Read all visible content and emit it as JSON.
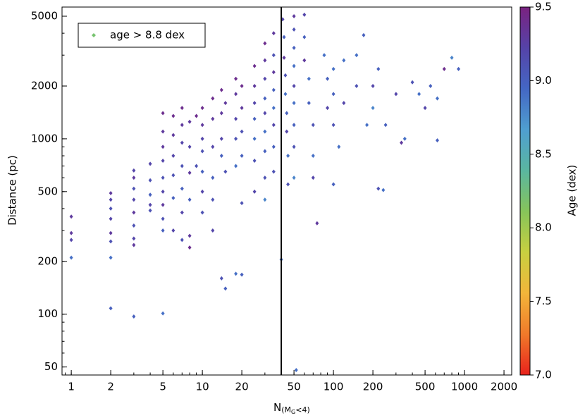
{
  "chart_data": {
    "type": "scatter",
    "xlabel": [
      "N",
      "(M",
      "G",
      "<4)"
    ],
    "ylabel": "Distance (pc)",
    "colorbar_label": "Age (dex)",
    "xscale": "log",
    "yscale": "log",
    "xlim": [
      0.85,
      2290
    ],
    "ylim": [
      45,
      5640
    ],
    "xticks": [
      1,
      2,
      5,
      10,
      20,
      50,
      100,
      200,
      500,
      1000,
      2000
    ],
    "yticks": [
      50,
      100,
      200,
      500,
      1000,
      2000,
      5000
    ],
    "clim": [
      7.0,
      9.5
    ],
    "cticks": [
      {
        "value": 7.0,
        "label": "7.0"
      },
      7.5,
      {
        "value": 8.0,
        "label": "8.0"
      },
      8.5,
      {
        "value": 9.0,
        "label": "9.0"
      },
      9.5
    ],
    "colormap": [
      "#e8221c",
      "#f07a2a",
      "#f2b53a",
      "#c8d040",
      "#86c45a",
      "#5ab6a0",
      "#4f9fd0",
      "#4467c4",
      "#5543a8",
      "#7a2280"
    ],
    "vline": 40,
    "legend": {
      "label": "age > 8.8 dex",
      "color": "#77c36f",
      "loc": "upper left"
    },
    "series": [
      {
        "name": "age > 8.8 dex",
        "x": [
          1,
          1,
          1,
          1,
          2,
          2,
          2,
          2,
          2,
          2,
          2,
          2,
          3,
          3,
          3,
          3,
          3,
          3,
          3,
          3,
          3,
          4,
          4,
          4,
          4,
          4,
          5,
          5,
          5,
          5,
          5,
          5,
          5,
          5,
          5,
          5,
          6,
          6,
          6,
          6,
          6,
          6,
          7,
          7,
          7,
          7,
          7,
          7,
          7,
          8,
          8,
          8,
          8,
          8,
          8,
          9,
          9,
          10,
          10,
          10,
          10,
          10,
          10,
          10,
          12,
          12,
          12,
          12,
          12,
          12,
          14,
          14,
          14,
          14,
          14,
          15,
          15,
          15,
          18,
          18,
          18,
          18,
          18,
          18,
          20,
          20,
          20,
          20,
          20,
          20,
          25,
          25,
          25,
          25,
          25,
          25,
          25,
          30,
          30,
          30,
          30,
          30,
          30,
          30,
          30,
          30,
          35,
          35,
          35,
          35,
          35,
          35,
          35,
          35,
          41,
          42,
          42,
          43,
          43,
          44,
          44,
          45,
          45,
          40,
          50,
          50,
          50,
          50,
          50,
          50,
          50,
          50,
          50,
          52,
          60,
          60,
          60,
          65,
          65,
          70,
          70,
          70,
          75,
          85,
          90,
          90,
          100,
          100,
          100,
          110,
          120,
          120,
          100,
          150,
          150,
          170,
          180,
          200,
          200,
          220,
          220,
          240,
          250,
          300,
          330,
          350,
          400,
          450,
          500,
          550,
          620,
          620,
          700,
          800,
          900
        ],
        "values": [
          360,
          290,
          265,
          210,
          490,
          450,
          400,
          350,
          290,
          260,
          210,
          108,
          660,
          600,
          520,
          450,
          380,
          320,
          270,
          248,
          97,
          720,
          580,
          480,
          420,
          390,
          1400,
          1100,
          900,
          750,
          600,
          500,
          420,
          350,
          300,
          101,
          1350,
          1050,
          800,
          620,
          460,
          300,
          1500,
          1200,
          950,
          700,
          520,
          380,
          265,
          1250,
          900,
          640,
          450,
          280,
          240,
          1350,
          700,
          1500,
          1200,
          1000,
          850,
          650,
          500,
          380,
          1700,
          1300,
          900,
          600,
          450,
          300,
          1900,
          1400,
          1000,
          800,
          160,
          1600,
          650,
          140,
          2200,
          1800,
          1300,
          1000,
          700,
          170,
          2000,
          1500,
          1100,
          800,
          430,
          168,
          2600,
          2000,
          1600,
          1300,
          1000,
          750,
          500,
          3500,
          2800,
          2200,
          1700,
          1400,
          1100,
          850,
          600,
          450,
          4000,
          3000,
          2400,
          1900,
          1500,
          1200,
          900,
          650,
          4800,
          3800,
          2900,
          2300,
          1800,
          1400,
          1100,
          800,
          550,
          205,
          5000,
          4200,
          3300,
          2600,
          2000,
          1600,
          1200,
          900,
          600,
          48,
          5100,
          3800,
          2800,
          2200,
          1600,
          1200,
          800,
          600,
          330,
          3000,
          2200,
          1500,
          2500,
          1800,
          1200,
          900,
          1600,
          2800,
          550,
          3000,
          2000,
          3900,
          1200,
          2000,
          1500,
          2500,
          520,
          510,
          1200,
          1800,
          950,
          1000,
          2100,
          1800,
          1500,
          2000,
          1700,
          980,
          2500,
          2900,
          2500
        ],
        "color_values": [
          9.3,
          9.3,
          9.2,
          8.9,
          9.3,
          9.2,
          9.1,
          9.2,
          9.3,
          9.1,
          8.9,
          9.0,
          9.2,
          9.3,
          9.1,
          9.2,
          9.3,
          9.1,
          9.2,
          9.3,
          9.0,
          9.2,
          9.1,
          9.0,
          9.2,
          9.1,
          9.4,
          9.3,
          9.3,
          9.2,
          9.1,
          9.2,
          9.3,
          9.1,
          9.0,
          8.9,
          9.4,
          9.3,
          9.2,
          9.1,
          9.0,
          9.2,
          9.4,
          9.3,
          9.2,
          9.1,
          9.0,
          9.2,
          9.1,
          9.3,
          9.2,
          9.3,
          9.0,
          9.3,
          9.4,
          9.4,
          9.1,
          9.4,
          9.3,
          9.2,
          9.1,
          9.0,
          9.2,
          9.1,
          9.4,
          9.3,
          9.2,
          9.0,
          9.1,
          9.2,
          9.4,
          9.3,
          9.2,
          9.0,
          9.1,
          9.3,
          9.1,
          9.0,
          9.4,
          9.3,
          9.2,
          9.1,
          8.9,
          8.9,
          9.4,
          9.3,
          9.1,
          9.0,
          9.1,
          9.0,
          9.4,
          9.3,
          9.2,
          9.0,
          8.9,
          9.1,
          9.2,
          9.4,
          9.3,
          9.2,
          9.0,
          9.2,
          8.9,
          9.0,
          9.1,
          8.8,
          9.3,
          9.1,
          9.3,
          9.0,
          8.9,
          9.2,
          9.0,
          9.1,
          9.2,
          9.0,
          9.3,
          9.1,
          8.9,
          9.0,
          9.2,
          8.9,
          9.1,
          8.9,
          9.3,
          9.1,
          9.0,
          8.9,
          9.2,
          8.9,
          9.0,
          9.1,
          8.8,
          8.9,
          9.2,
          9.0,
          9.3,
          8.9,
          9.0,
          9.1,
          8.9,
          9.2,
          9.3,
          8.9,
          9.0,
          9.2,
          8.9,
          9.0,
          9.1,
          8.9,
          9.2,
          8.9,
          9.0,
          8.9,
          9.1,
          9.0,
          8.9,
          9.2,
          8.8,
          9.0,
          9.1,
          8.9,
          9.0,
          9.2,
          9.3,
          8.9,
          9.1,
          8.9,
          9.2,
          9.0,
          8.9,
          9.0,
          9.4,
          8.8,
          9.0
        ]
      }
    ]
  }
}
